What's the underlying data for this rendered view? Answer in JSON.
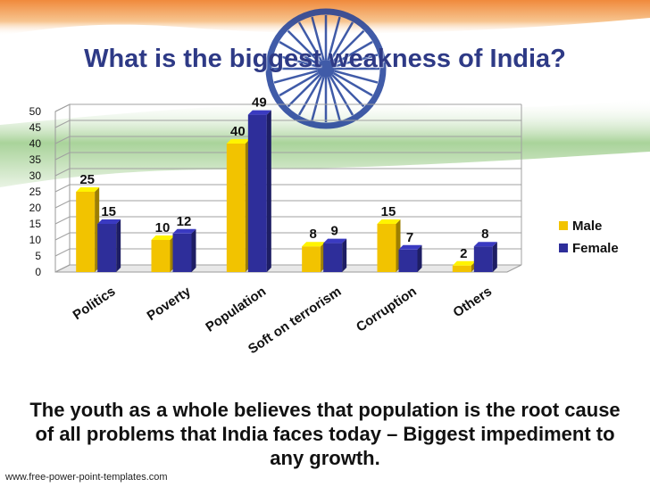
{
  "slide": {
    "title": "What is the biggest weakness of India?",
    "caption": "The youth as a whole believes that population is the root cause of all problems that India faces today – Biggest impediment to any growth.",
    "footer": "www.free-power-point-templates.com",
    "colors": {
      "saffron": "#f4a259",
      "green": "#5aa14a",
      "chakra": "#1f3f99",
      "title": "#2e3a86"
    }
  },
  "chart_data": {
    "type": "bar",
    "categories": [
      "Politics",
      "Poverty",
      "Population",
      "Soft on terrorism",
      "Corruption",
      "Others"
    ],
    "series": [
      {
        "name": "Male",
        "values": [
          25,
          10,
          40,
          8,
          15,
          2
        ],
        "color": "#f2c300"
      },
      {
        "name": "Female",
        "values": [
          15,
          12,
          49,
          9,
          7,
          8
        ],
        "color": "#2e2e9a"
      }
    ],
    "yticks": [
      0,
      5,
      10,
      15,
      20,
      25,
      30,
      35,
      40,
      45,
      50
    ],
    "ylim": [
      0,
      50
    ],
    "grid": true,
    "legend": "right"
  }
}
